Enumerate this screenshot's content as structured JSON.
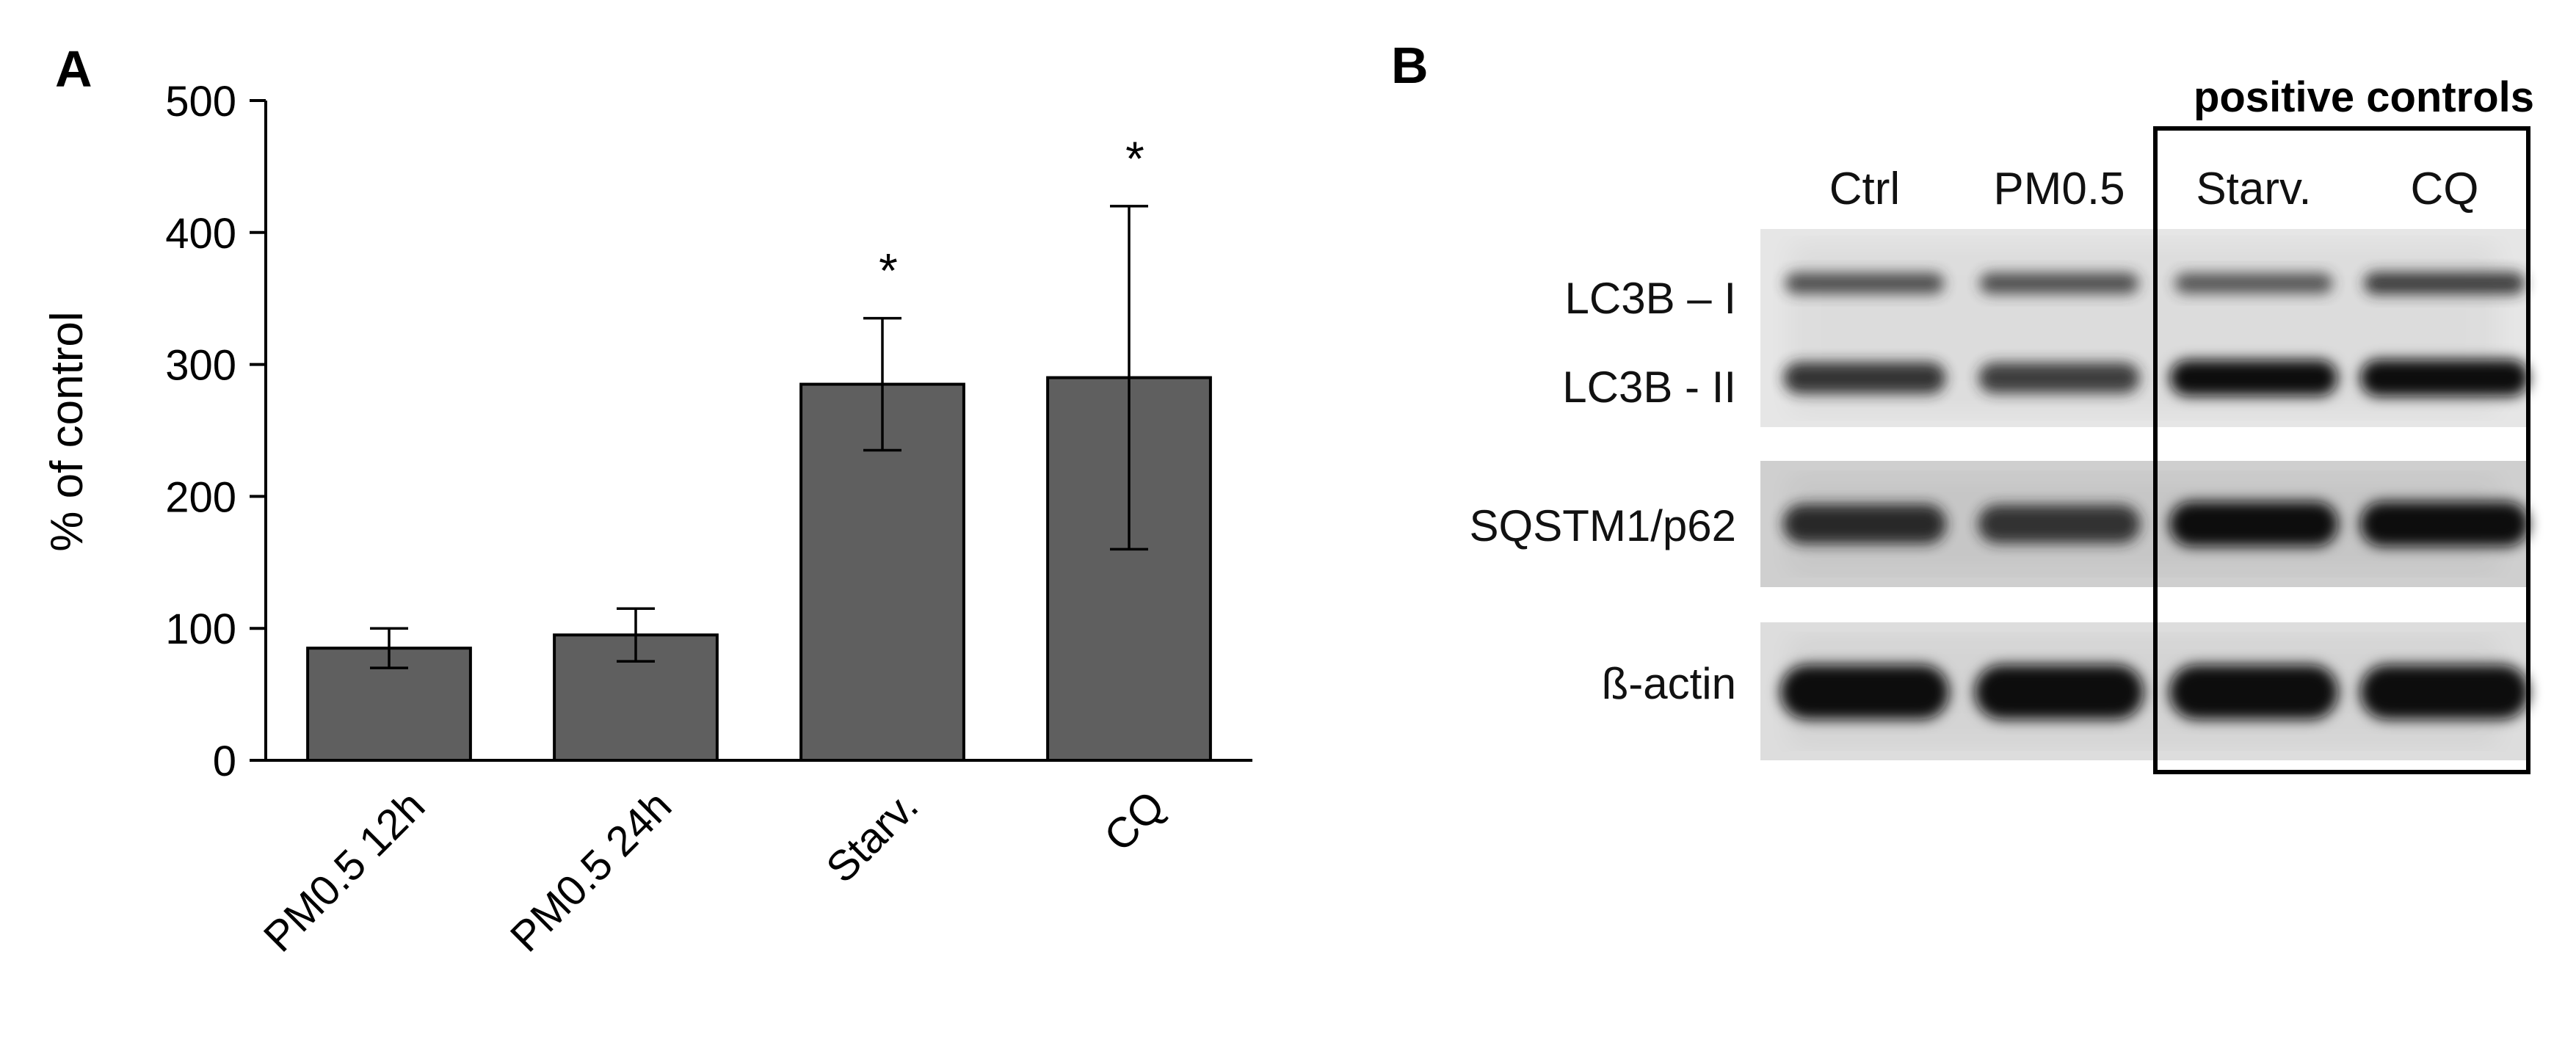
{
  "panel_a": {
    "letter": "A",
    "chart_data": {
      "type": "bar",
      "categories": [
        "PM0.5 12h",
        "PM0.5 24h",
        "Starv.",
        "CQ"
      ],
      "values": [
        85,
        95,
        285,
        290
      ],
      "error_low": [
        70,
        75,
        235,
        160
      ],
      "error_high": [
        100,
        115,
        335,
        420
      ],
      "significance": [
        "",
        "",
        "*",
        "*"
      ],
      "title": "",
      "xlabel": "",
      "ylabel": "% of control",
      "ylim": [
        0,
        500
      ],
      "yticks": [
        0,
        100,
        200,
        300,
        400,
        500
      ],
      "grid": false,
      "bar_color": "#5f5f5f"
    }
  },
  "panel_b": {
    "letter": "B",
    "group_label": "positive controls",
    "lanes": [
      "Ctrl",
      "PM0.5",
      "Starv.",
      "CQ"
    ],
    "blots": [
      {
        "name": "lc3b",
        "row_labels": [
          "LC3B – I",
          "LC3B - II"
        ],
        "bands": [
          {
            "row": 0,
            "intensity": [
              0.55,
              0.55,
              0.5,
              0.65
            ]
          },
          {
            "row": 1,
            "intensity": [
              0.7,
              0.65,
              0.95,
              1.0
            ]
          }
        ]
      },
      {
        "name": "sqstm1",
        "row_labels": [
          "SQSTM1/p62"
        ],
        "bands": [
          {
            "row": 0,
            "intensity": [
              0.75,
              0.7,
              1.0,
              1.0
            ]
          }
        ]
      },
      {
        "name": "actin",
        "row_labels": [
          "ß-actin"
        ],
        "bands": [
          {
            "row": 0,
            "intensity": [
              1.0,
              1.0,
              1.0,
              1.0
            ]
          }
        ]
      }
    ]
  }
}
